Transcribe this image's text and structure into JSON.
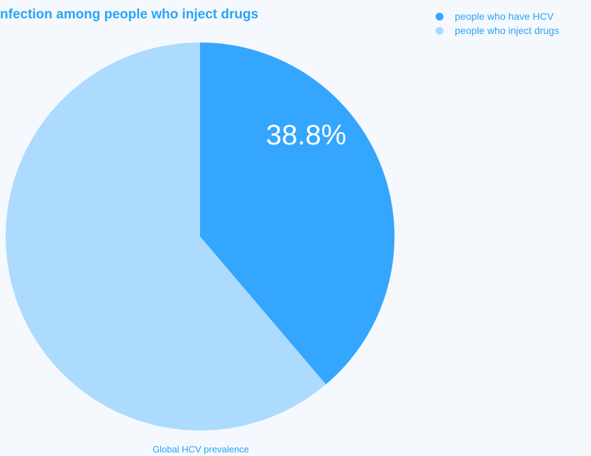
{
  "chart_data": {
    "type": "pie",
    "title": "nfection among people who inject drugs",
    "xlabel": "Global HCV prevalence",
    "slices": [
      {
        "label": "people who have HCV",
        "value": 38.8,
        "display": "38.8%",
        "color": "#34a6fe"
      },
      {
        "label": "people who inject drugs",
        "value": 61.2,
        "display": "",
        "color": "#acdbfe"
      }
    ],
    "legend_position": "top-right",
    "grid": false
  }
}
